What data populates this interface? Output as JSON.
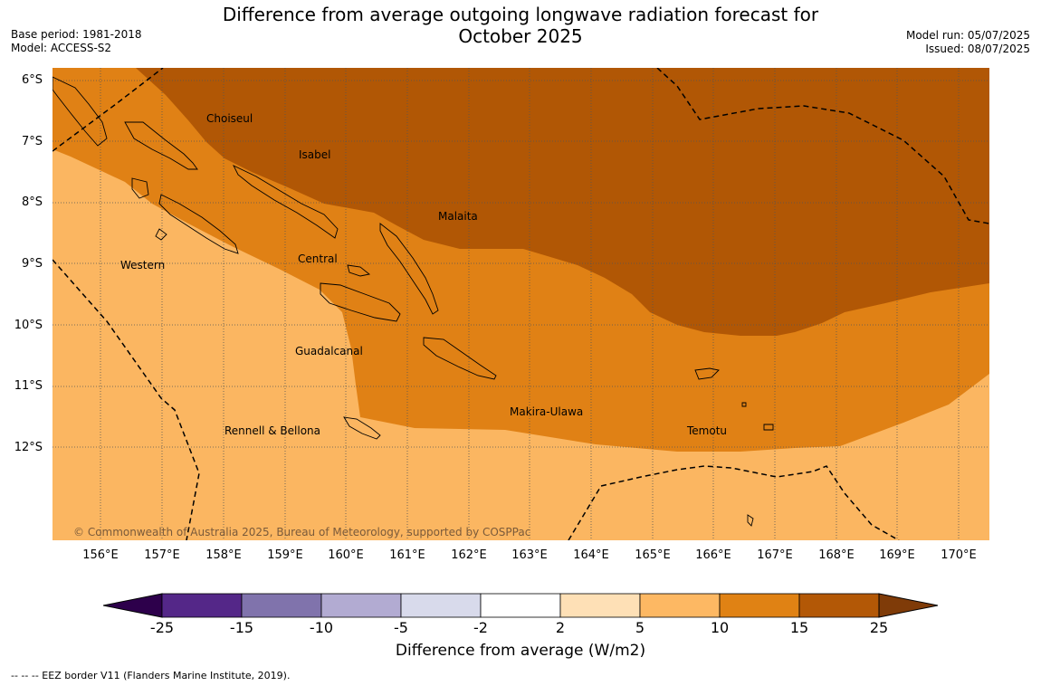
{
  "header": {
    "title_line1": "Difference from average outgoing longwave radiation forecast for",
    "title_line2": "October 2025",
    "base_period": "Base period: 1981-2018",
    "model": "Model: ACCESS-S2",
    "model_run": "Model run: 05/07/2025",
    "issued": "Issued: 08/07/2025"
  },
  "map": {
    "lat_labels": [
      "6°S",
      "7°S",
      "8°S",
      "9°S",
      "10°S",
      "11°S",
      "12°S"
    ],
    "lon_labels": [
      "156°E",
      "157°E",
      "158°E",
      "159°E",
      "160°E",
      "161°E",
      "162°E",
      "163°E",
      "164°E",
      "165°E",
      "166°E",
      "167°E",
      "168°E",
      "169°E",
      "170°E"
    ],
    "region_labels": {
      "choiseul": "Choiseul",
      "isabel": "Isabel",
      "malaita": "Malaita",
      "western": "Western",
      "central": "Central",
      "guadalcanal": "Guadalcanal",
      "makira": "Makira-Ulawa",
      "rennell": "Rennell & Bellona",
      "temotu": "Temotu"
    },
    "copyright": "© Commonwealth of Australia 2025, Bureau of Meteorology, supported by COSPPac",
    "colors": {
      "band_5_10": "#fbb661",
      "band_10_15": "#e08115",
      "band_15_25": "#b15705",
      "border": "#000000"
    }
  },
  "colorbar": {
    "ticks": [
      "-25",
      "-15",
      "-10",
      "-5",
      "-2",
      "2",
      "5",
      "10",
      "15",
      "25"
    ],
    "colors": [
      "#2d004b",
      "#542788",
      "#8073ac",
      "#b2abd2",
      "#d8daeb",
      "#ffffff",
      "#fee0b6",
      "#fdb863",
      "#e08214",
      "#b35806",
      "#7f3b08"
    ],
    "label": "Difference from average (W/m2)"
  },
  "footnote": "--  --  -- EEZ border V11 (Flanders Marine Institute, 2019)."
}
